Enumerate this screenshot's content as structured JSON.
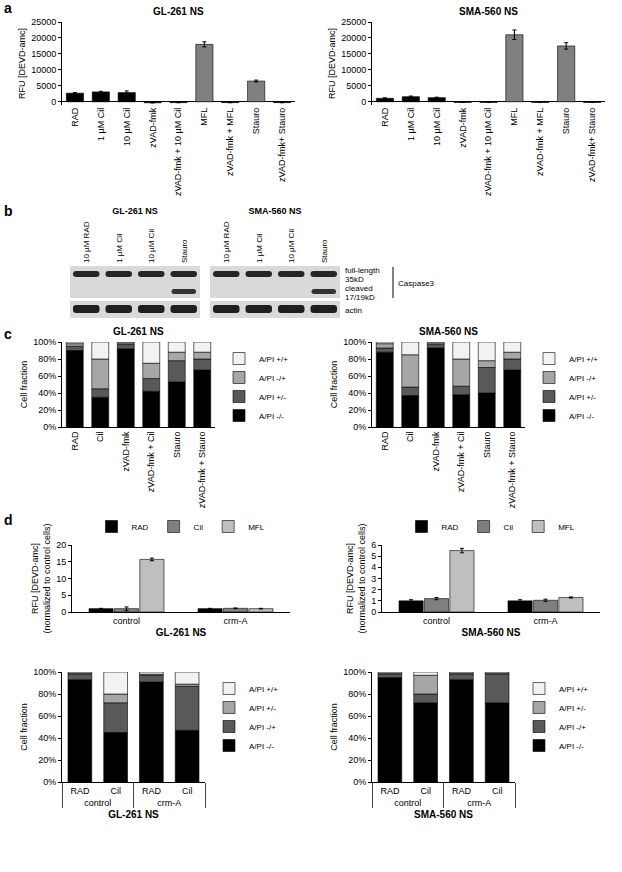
{
  "panel_labels": [
    "a",
    "b",
    "c",
    "d"
  ],
  "chart_data": [
    {
      "type": "bar",
      "title": "GL-261 NS",
      "y_label": "RFU [DEVD-amc]",
      "grid": false,
      "categories": [
        "RAD",
        "1 µM Cil",
        "10 µM Cil",
        "zVAD-fmk",
        "zVAD-fmk + 10 µM Cil",
        "MFL",
        "zVAD-fmk + MFL",
        "Stauro",
        "zVAD-fmk+ Stauro"
      ],
      "values": [
        2700,
        3100,
        2900,
        -300,
        -250,
        18000,
        -250,
        6500,
        -250
      ],
      "errors": [
        200,
        200,
        500,
        0,
        0,
        800,
        0,
        300,
        0
      ],
      "colors": [
        "#000000",
        "#000000",
        "#000000",
        "#000000",
        "#000000",
        "#808080",
        "#000000",
        "#808080",
        "#000000"
      ],
      "ylim": [
        -1000,
        25000
      ],
      "yticks": [
        0,
        5000,
        10000,
        15000,
        20000,
        25000
      ]
    },
    {
      "type": "bar",
      "title": "SMA-560 NS",
      "y_label": "RFU [DEVD-amc]",
      "grid": false,
      "categories": [
        "RAD",
        "1 µM Cil",
        "10 µM Cil",
        "zVAD-fmk",
        "zVAD-fmk + 10 µM Cil",
        "MFL",
        "zVAD-fmk + MFL",
        "Stauro",
        "zVAD-fmk+ Stauro"
      ],
      "values": [
        1100,
        1600,
        1300,
        -200,
        -200,
        21000,
        -200,
        17500,
        -200
      ],
      "errors": [
        150,
        200,
        150,
        0,
        0,
        1500,
        0,
        1000,
        0
      ],
      "colors": [
        "#000000",
        "#000000",
        "#000000",
        "#000000",
        "#000000",
        "#808080",
        "#000000",
        "#808080",
        "#000000"
      ],
      "ylim": [
        -1000,
        25000
      ],
      "yticks": [
        0,
        5000,
        10000,
        15000,
        20000,
        25000
      ]
    },
    {
      "type": "bar",
      "title": "GL-261 NS",
      "y_label": "Cell fraction",
      "grid": false,
      "stacked": true,
      "legend": "right",
      "categories": [
        "RAD",
        "Cil",
        "zVAD-fmk",
        "zVAD-fmk + Cil",
        "Stauro",
        "zVAD-fmk + Stauro"
      ],
      "series": [
        {
          "name": "A/PI -/-",
          "color": "#000000",
          "values": [
            90,
            35,
            92,
            42,
            53,
            67
          ]
        },
        {
          "name": "A/PI +/-",
          "color": "#595959",
          "values": [
            5,
            10,
            5,
            15,
            25,
            13
          ]
        },
        {
          "name": "A/PI -/+",
          "color": "#a6a6a6",
          "values": [
            3,
            35,
            2,
            18,
            10,
            8
          ]
        },
        {
          "name": "A/PI +/+",
          "color": "#f2f2f2",
          "values": [
            2,
            20,
            1,
            25,
            12,
            12
          ]
        }
      ],
      "ylim": [
        0,
        100
      ],
      "yticks": [
        {
          "value": 0,
          "label": "0%"
        },
        {
          "value": 20,
          "label": "20%"
        },
        {
          "value": 40,
          "label": "40%"
        },
        {
          "value": 60,
          "label": "60%"
        },
        {
          "value": 80,
          "label": "80%"
        },
        {
          "value": 100,
          "label": "100%"
        }
      ]
    },
    {
      "type": "bar",
      "title": "SMA-560 NS",
      "y_label": "Cell fraction",
      "grid": false,
      "stacked": true,
      "legend": "right",
      "categories": [
        "RAD",
        "Cil",
        "zVAD-fmk",
        "zVAD-fmk + Cil",
        "Stauro",
        "zVAD-fmk + Stauro"
      ],
      "series": [
        {
          "name": "A/PI -/-",
          "color": "#000000",
          "values": [
            88,
            37,
            93,
            38,
            40,
            67
          ]
        },
        {
          "name": "A/PI +/-",
          "color": "#595959",
          "values": [
            5,
            10,
            4,
            10,
            30,
            13
          ]
        },
        {
          "name": "A/PI -/+",
          "color": "#a6a6a6",
          "values": [
            5,
            38,
            2,
            32,
            8,
            8
          ]
        },
        {
          "name": "A/PI +/+",
          "color": "#f2f2f2",
          "values": [
            2,
            15,
            1,
            20,
            22,
            12
          ]
        }
      ],
      "ylim": [
        0,
        100
      ],
      "yticks": [
        {
          "value": 0,
          "label": "0%"
        },
        {
          "value": 20,
          "label": "20%"
        },
        {
          "value": 40,
          "label": "40%"
        },
        {
          "value": 60,
          "label": "60%"
        },
        {
          "value": 80,
          "label": "80%"
        },
        {
          "value": 100,
          "label": "100%"
        }
      ]
    },
    {
      "type": "bar",
      "x_label": "GL-261 NS",
      "y_label": [
        "RFU [DEVD-amc]",
        "(normalized to control cells)"
      ],
      "grid": false,
      "legend": "top",
      "categories": [
        "control",
        "crm-A"
      ],
      "series": [
        {
          "name": "RAD",
          "color": "#000000",
          "values": [
            1.0,
            1.0
          ],
          "errors": [
            0.1,
            0.1
          ]
        },
        {
          "name": "Cil",
          "color": "#7f7f7f",
          "values": [
            1.0,
            1.1
          ],
          "errors": [
            0.5,
            0.1
          ]
        },
        {
          "name": "MFL",
          "color": "#bfbfbf",
          "values": [
            15.7,
            1.0
          ],
          "errors": [
            0.4,
            0.1
          ]
        }
      ],
      "ylim": [
        0,
        20
      ],
      "yticks": [
        0,
        5,
        10,
        15,
        20
      ]
    },
    {
      "type": "bar",
      "x_label": "SMA-560 NS",
      "y_label": [
        "RFU [DEVD-amc]",
        "(normalized to control cells)"
      ],
      "grid": false,
      "legend": "top",
      "categories": [
        "control",
        "crm-A"
      ],
      "series": [
        {
          "name": "RAD",
          "color": "#000000",
          "values": [
            1.0,
            1.0
          ],
          "errors": [
            0.1,
            0.1
          ]
        },
        {
          "name": "Cil",
          "color": "#7f7f7f",
          "values": [
            1.2,
            1.05
          ],
          "errors": [
            0.1,
            0.1
          ]
        },
        {
          "name": "MFL",
          "color": "#bfbfbf",
          "values": [
            5.5,
            1.3
          ],
          "errors": [
            0.2,
            0.05
          ]
        }
      ],
      "ylim": [
        0,
        6
      ],
      "yticks": [
        0,
        1,
        2,
        3,
        4,
        5,
        6
      ]
    },
    {
      "type": "bar",
      "x_label": "GL-261 NS",
      "y_label": "Cell fraction",
      "grid": false,
      "stacked": true,
      "legend": "right",
      "categories": [
        "RAD",
        "Cil",
        "RAD",
        "Cil"
      ],
      "groups": [
        "control",
        "control",
        "crm-A",
        "crm-A"
      ],
      "series": [
        {
          "name": "A/PI -/-",
          "color": "#000000",
          "values": [
            93,
            45,
            91,
            47
          ]
        },
        {
          "name": "A/PI -/+",
          "color": "#595959",
          "values": [
            5,
            27,
            6,
            40
          ]
        },
        {
          "name": "A/PI +/-",
          "color": "#a6a6a6",
          "values": [
            1,
            8,
            1,
            2
          ]
        },
        {
          "name": "A/PI +/+",
          "color": "#f2f2f2",
          "values": [
            1,
            20,
            2,
            11
          ]
        }
      ],
      "ylim": [
        0,
        100
      ],
      "yticks": [
        {
          "value": 0,
          "label": "0%"
        },
        {
          "value": 20,
          "label": "20%"
        },
        {
          "value": 40,
          "label": "40%"
        },
        {
          "value": 60,
          "label": "60%"
        },
        {
          "value": 80,
          "label": "80%"
        },
        {
          "value": 100,
          "label": "100%"
        }
      ]
    },
    {
      "type": "bar",
      "x_label": "SMA-560 NS",
      "y_label": "Cell fraction",
      "grid": false,
      "stacked": true,
      "legend": "right",
      "categories": [
        "RAD",
        "Cil",
        "RAD",
        "Cil"
      ],
      "groups": [
        "control",
        "control",
        "crm-A",
        "crm-A"
      ],
      "series": [
        {
          "name": "A/PI -/-",
          "color": "#000000",
          "values": [
            95,
            72,
            93,
            72
          ]
        },
        {
          "name": "A/PI -/+",
          "color": "#595959",
          "values": [
            3,
            8,
            5,
            26
          ]
        },
        {
          "name": "A/PI +/-",
          "color": "#a6a6a6",
          "values": [
            1,
            17,
            1,
            1
          ]
        },
        {
          "name": "A/PI +/+",
          "color": "#f2f2f2",
          "values": [
            1,
            3,
            1,
            1
          ]
        }
      ],
      "ylim": [
        0,
        100
      ],
      "yticks": [
        {
          "value": 0,
          "label": "0%"
        },
        {
          "value": 20,
          "label": "20%"
        },
        {
          "value": 40,
          "label": "40%"
        },
        {
          "value": 60,
          "label": "60%"
        },
        {
          "value": 80,
          "label": "80%"
        },
        {
          "value": 100,
          "label": "100%"
        }
      ]
    }
  ],
  "blot": {
    "panels": [
      {
        "title": "GL-261 NS",
        "lanes": [
          "10 µM RAD",
          "1 µM Cil",
          "10 µM Cil",
          "Stauro"
        ]
      },
      {
        "title": "SMA-560 NS",
        "lanes": [
          "10 µM RAD",
          "1 µM Cil",
          "10 µM Cil",
          "Stauro"
        ]
      }
    ],
    "bands": [
      [
        "full-length",
        "35kD"
      ],
      [
        "cleaved",
        "17/19kD"
      ]
    ],
    "protein": "Caspase3",
    "loading_control": "actin",
    "cleaved_lane": "Stauro"
  }
}
